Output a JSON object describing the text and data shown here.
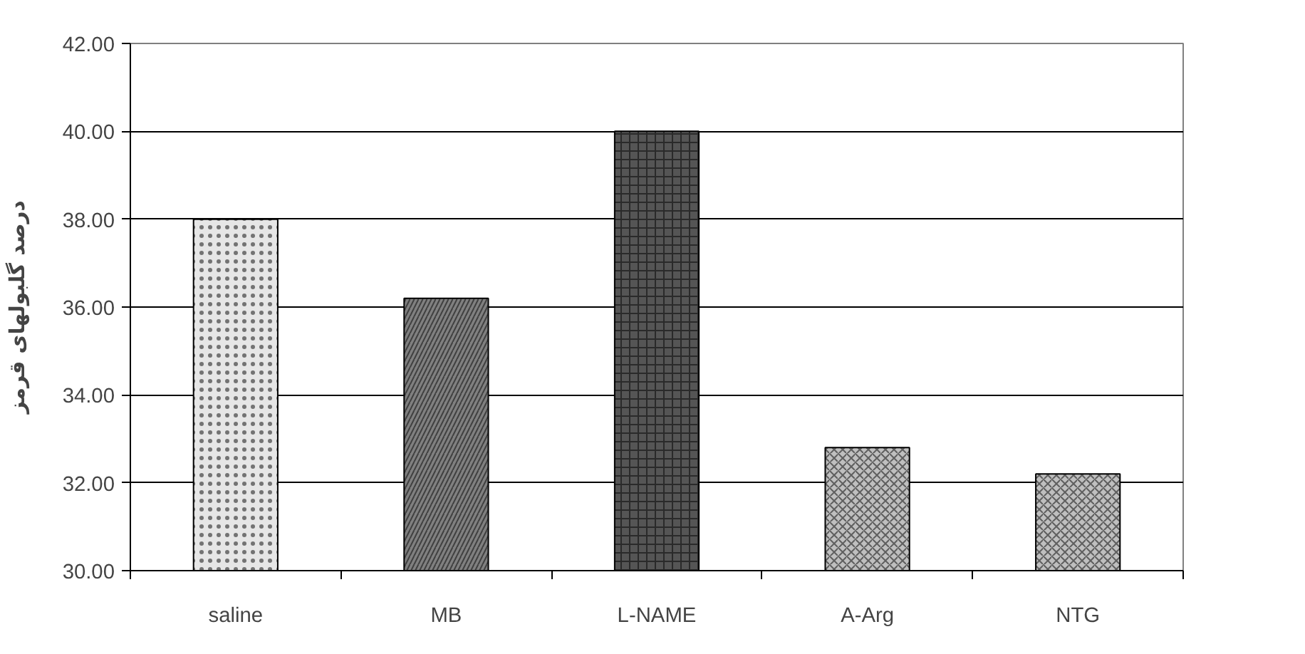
{
  "chart_data": {
    "type": "bar",
    "ylabel": "درصد گلبولهای قرمز",
    "categories": [
      "saline",
      "MB",
      "L-NAME",
      "A-Arg",
      "NTG"
    ],
    "values": [
      38.0,
      36.2,
      40.0,
      32.8,
      32.2
    ],
    "colors": [
      "#e6e6e6",
      "#808080",
      "#555555",
      "#bfbfbf",
      "#bfbfbf"
    ],
    "ylim": [
      30,
      42
    ],
    "yticks": [
      {
        "value": 30,
        "label": "30.00"
      },
      {
        "value": 32,
        "label": "32.00"
      },
      {
        "value": 34,
        "label": "34.00"
      },
      {
        "value": 36,
        "label": "36.00"
      },
      {
        "value": 38,
        "label": "38.00"
      },
      {
        "value": 40,
        "label": "40.00"
      },
      {
        "value": 42,
        "label": "42.00"
      }
    ],
    "grid": "y"
  }
}
